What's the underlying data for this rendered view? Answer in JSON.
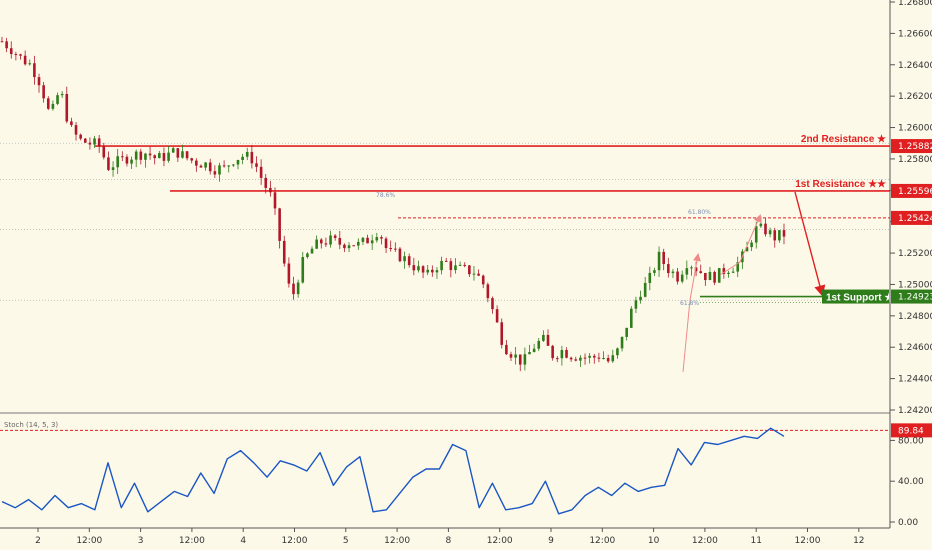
{
  "colors": {
    "background": "#fdf9e9",
    "axis": "#555555",
    "resistance": "#e02020",
    "support": "#2e7d1a",
    "stoch_line": "#1a56c4",
    "candle_bull": "#2e7d1a",
    "candle_bear": "#b0182a",
    "fib_arrow": "#f08a8a"
  },
  "chart_data": [
    {
      "type": "candlestick",
      "panel": "price",
      "y_axis": {
        "min": 1.242,
        "max": 1.268,
        "ticks": [
          "1.26800",
          "1.26600",
          "1.26400",
          "1.26200",
          "1.26000",
          "1.25800",
          "1.25600",
          "1.25400",
          "1.25200",
          "1.25000",
          "1.24800",
          "1.24600",
          "1.24400",
          "1.24200"
        ]
      },
      "x_axis": {
        "ticks": [
          "2",
          "12:00",
          "3",
          "12:00",
          "4",
          "12:00",
          "5",
          "12:00",
          "8",
          "12:00",
          "9",
          "12:00",
          "10",
          "12:00",
          "11",
          "12:00",
          "12"
        ]
      },
      "levels": [
        {
          "name": "2nd Resistance ★",
          "value": 1.25882,
          "value_label": "1.25882",
          "kind": "resistance"
        },
        {
          "name": "1st Resistance ★★",
          "value": 1.25596,
          "value_label": "1.25596",
          "kind": "resistance"
        },
        {
          "name": "",
          "value": 1.25424,
          "value_label": "1.25424",
          "kind": "resistance-dashed"
        },
        {
          "name": "1st Support ★★",
          "value": 1.24923,
          "value_label": "1.24923",
          "kind": "support"
        }
      ],
      "annotations": [
        "61.80%",
        "78.6%",
        "61.8%"
      ],
      "path": [
        1.2655,
        1.265,
        1.2644,
        1.264,
        1.2628,
        1.2606,
        1.2625,
        1.26,
        1.2592,
        1.259,
        1.2589,
        1.2575,
        1.2578,
        1.2581,
        1.2583,
        1.2584,
        1.258,
        1.2582,
        1.2585,
        1.2581,
        1.2578,
        1.2577,
        1.2574,
        1.2574,
        1.258,
        1.2582,
        1.258,
        1.2566,
        1.2554,
        1.252,
        1.249,
        1.2512,
        1.2522,
        1.2527,
        1.2528,
        1.2526,
        1.2527,
        1.2525,
        1.2529,
        1.2535,
        1.252,
        1.2519,
        1.2515,
        1.251,
        1.2505,
        1.2512,
        1.2514,
        1.251,
        1.2509,
        1.2508,
        1.2499,
        1.248,
        1.2461,
        1.2455,
        1.245,
        1.246,
        1.2465,
        1.2455,
        1.2458,
        1.2455,
        1.2454,
        1.2453,
        1.2455,
        1.245,
        1.246,
        1.248,
        1.2495,
        1.2502,
        1.2518,
        1.251,
        1.2505,
        1.2515,
        1.251,
        1.2505,
        1.2505,
        1.251,
        1.2512,
        1.252,
        1.2535,
        1.2535,
        1.253,
        1.2532
      ]
    },
    {
      "type": "line",
      "panel": "oscillator",
      "title": "Stoch (14, 5, 3)",
      "y_axis": {
        "min": 0,
        "max": 100,
        "ticks": [
          "80.00",
          "40.00",
          "0.00"
        ]
      },
      "overbought": {
        "value": 89.84,
        "value_label": "89.84"
      },
      "values": [
        20,
        14,
        22,
        12,
        26,
        14,
        18,
        12,
        58,
        14,
        38,
        10,
        20,
        30,
        25,
        48,
        28,
        62,
        70,
        58,
        44,
        60,
        56,
        50,
        68,
        36,
        54,
        64,
        10,
        12,
        28,
        44,
        52,
        52,
        76,
        70,
        14,
        38,
        12,
        14,
        18,
        40,
        8,
        12,
        26,
        34,
        26,
        38,
        30,
        34,
        36,
        72,
        56,
        78,
        76,
        80,
        84,
        82,
        92,
        84
      ]
    }
  ]
}
